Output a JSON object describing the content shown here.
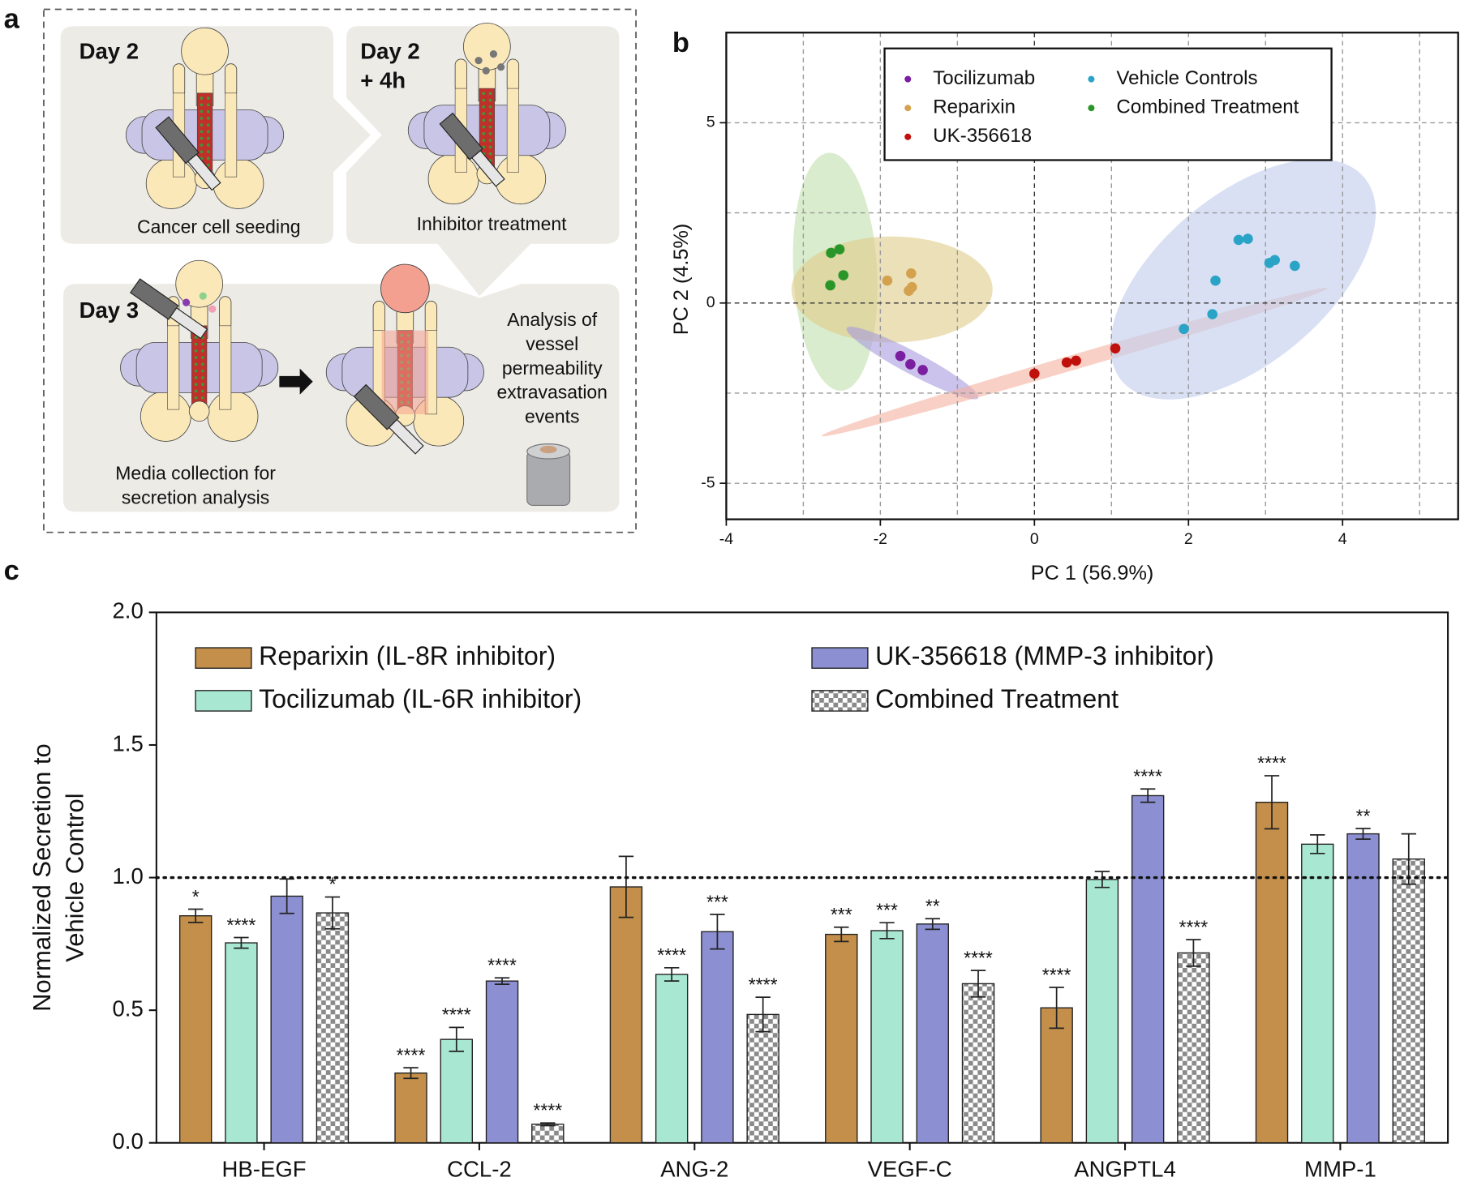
{
  "panel_labels": [
    "a",
    "b",
    "c"
  ],
  "diagram": {
    "steps": [
      {
        "label": [
          "Day 2"
        ],
        "caption": [
          "Cancer cell  seeding"
        ]
      },
      {
        "label": [
          "Day 2",
          "+ 4h"
        ],
        "caption": [
          "Inhibitor treatment"
        ]
      },
      {
        "label": [
          "Day 3"
        ],
        "caption": [
          "Media collection for",
          "secretion analysis"
        ]
      }
    ],
    "analysis": [
      "Analysis of",
      "vessel",
      "permeability",
      "extravasation",
      "events"
    ]
  },
  "chart_data": [
    {
      "type": "scatter",
      "xlabel": "PC 1 (56.9%)",
      "ylabel": "PC 2 (4.5%)",
      "xlim": [
        -4,
        5.5
      ],
      "ylim": [
        -6,
        7.5
      ],
      "xticks": [
        -4,
        -2,
        0,
        2,
        4
      ],
      "yticks": [
        -5,
        0,
        5
      ],
      "xgrid": [
        -4,
        -3,
        -2,
        -1,
        0,
        1,
        2,
        3,
        4,
        5
      ],
      "ygrid": [
        -5,
        -2.5,
        0,
        2.5,
        5,
        7.5
      ],
      "series": [
        {
          "name": "Tocilizumab",
          "color": "#7a1fa0",
          "x": [
            -1.74,
            -1.61,
            -1.45
          ],
          "values": [
            -1.47,
            -1.7,
            -1.86
          ]
        },
        {
          "name": "Reparixin",
          "color": "#d4a24e",
          "x": [
            -1.91,
            -1.6,
            -1.63,
            -1.59
          ],
          "values": [
            0.62,
            0.82,
            0.34,
            0.44
          ]
        },
        {
          "name": "UK-356618",
          "color": "#c0100c",
          "x": [
            0,
            0.42,
            0.54,
            1.05
          ],
          "values": [
            -1.96,
            -1.65,
            -1.6,
            -1.26
          ]
        },
        {
          "name": "Vehicle Controls",
          "color": "#2aa4c6",
          "x": [
            2.65,
            2.77,
            3.05,
            3.12,
            3.38,
            2.35,
            2.31,
            1.94
          ],
          "values": [
            1.75,
            1.78,
            1.11,
            1.19,
            1.03,
            0.62,
            -0.31,
            -0.72
          ]
        },
        {
          "name": "Combined Treatment",
          "color": "#2a962a",
          "x": [
            -2.64,
            -2.53,
            -2.48,
            -2.65
          ],
          "values": [
            1.39,
            1.49,
            0.77,
            0.49
          ]
        }
      ]
    },
    {
      "type": "bar",
      "ylabel": [
        "Normalized Secretion to",
        "Vehicle Control"
      ],
      "categories": [
        "HB-EGF",
        "CCL-2",
        "ANG-2",
        "VEGF-C",
        "ANGPTL4",
        "MMP-1"
      ],
      "ylim": [
        0,
        2
      ],
      "yticks": [
        {
          "value": 0,
          "label": "0.0"
        },
        0.5,
        {
          "value": 1,
          "label": "1.0"
        },
        1.5,
        {
          "value": 2,
          "label": "2.0"
        }
      ],
      "hline": 1,
      "series": [
        {
          "name": "Reparixin (IL-8R inhibitor)",
          "color": "#c38f4a",
          "values": [
            0.856,
            0.263,
            0.965,
            0.786,
            0.509,
            1.284
          ],
          "errors": [
            0.025,
            0.02,
            0.115,
            0.027,
            0.077,
            0.1
          ],
          "significance": [
            "*",
            "****",
            null,
            "***",
            "****",
            "****"
          ]
        },
        {
          "name": "Tocilizumab (IL-6R inhibitor)",
          "color": "#a8e8d2",
          "values": [
            0.754,
            0.39,
            0.635,
            0.8,
            0.993,
            1.126
          ],
          "errors": [
            0.02,
            0.045,
            0.025,
            0.03,
            0.03,
            0.035
          ],
          "significance": [
            "****",
            "****",
            "****",
            "***",
            null,
            null
          ]
        },
        {
          "name": "UK-356618 (MMP-3 inhibitor)",
          "color": "#8c90d2",
          "values": [
            0.93,
            0.61,
            0.796,
            0.825,
            1.309,
            1.165
          ],
          "errors": [
            0.065,
            0.012,
            0.065,
            0.02,
            0.025,
            0.02
          ],
          "significance": [
            null,
            "****",
            "***",
            "**",
            "****",
            "**"
          ]
        },
        {
          "name": "Combined Treatment",
          "color": "#8a8a8a",
          "pattern": "checker",
          "values": [
            0.867,
            0.07,
            0.484,
            0.6,
            0.716,
            1.07
          ],
          "errors": [
            0.06,
            0.005,
            0.065,
            0.05,
            0.05,
            0.095
          ],
          "significance": [
            "*",
            "****",
            "****",
            "****",
            "****",
            null
          ]
        }
      ]
    }
  ]
}
